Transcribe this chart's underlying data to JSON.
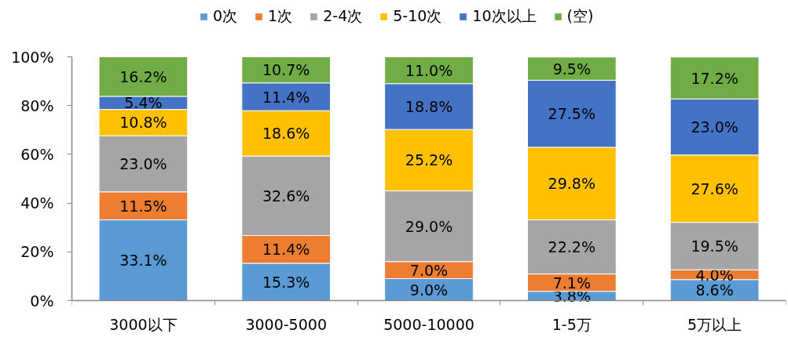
{
  "chart_data": {
    "type": "bar",
    "stacked": true,
    "categories": [
      "3000以下",
      "3000-5000",
      "5000-10000",
      "1-5万",
      "5万以上"
    ],
    "series": [
      {
        "name": "0次",
        "color": "#5b9bd5",
        "values": [
          33.1,
          15.3,
          9.0,
          3.8,
          8.6
        ],
        "value_labels": [
          "33.1%",
          "15.3%",
          "9.0%",
          "3.8%",
          "8.6%"
        ]
      },
      {
        "name": "1次",
        "color": "#ed7d31",
        "values": [
          11.5,
          11.4,
          7.0,
          7.1,
          4.0
        ],
        "value_labels": [
          "11.5%",
          "11.4%",
          "7.0%",
          "7.1%",
          "4.0%"
        ]
      },
      {
        "name": "2-4次",
        "color": "#a5a5a5",
        "values": [
          23.0,
          32.6,
          29.0,
          22.2,
          19.5
        ],
        "value_labels": [
          "23.0%",
          "32.6%",
          "29.0%",
          "22.2%",
          "19.5%"
        ]
      },
      {
        "name": "5-10次",
        "color": "#ffc000",
        "values": [
          10.8,
          18.6,
          25.2,
          29.8,
          27.6
        ],
        "value_labels": [
          "10.8%",
          "18.6%",
          "25.2%",
          "29.8%",
          "27.6%"
        ]
      },
      {
        "name": "10次以上",
        "color": "#4472c4",
        "values": [
          5.4,
          11.4,
          18.8,
          27.5,
          23.0
        ],
        "value_labels": [
          "5.4%",
          "11.4%",
          "18.8%",
          "27.5%",
          "23.0%"
        ]
      },
      {
        "name": "(空)",
        "color": "#70ad47",
        "values": [
          16.2,
          10.7,
          11.0,
          9.5,
          17.2
        ],
        "value_labels": [
          "16.2%",
          "10.7%",
          "11.0%",
          "9.5%",
          "17.2%"
        ]
      }
    ],
    "ylim": [
      0,
      100
    ],
    "yticks": [
      {
        "value": 0,
        "label": "0%"
      },
      {
        "value": 20,
        "label": "20%"
      },
      {
        "value": 40,
        "label": "40%"
      },
      {
        "value": 60,
        "label": "60%"
      },
      {
        "value": 80,
        "label": "80%"
      },
      {
        "value": 100,
        "label": "100%"
      }
    ],
    "legend": "top"
  }
}
